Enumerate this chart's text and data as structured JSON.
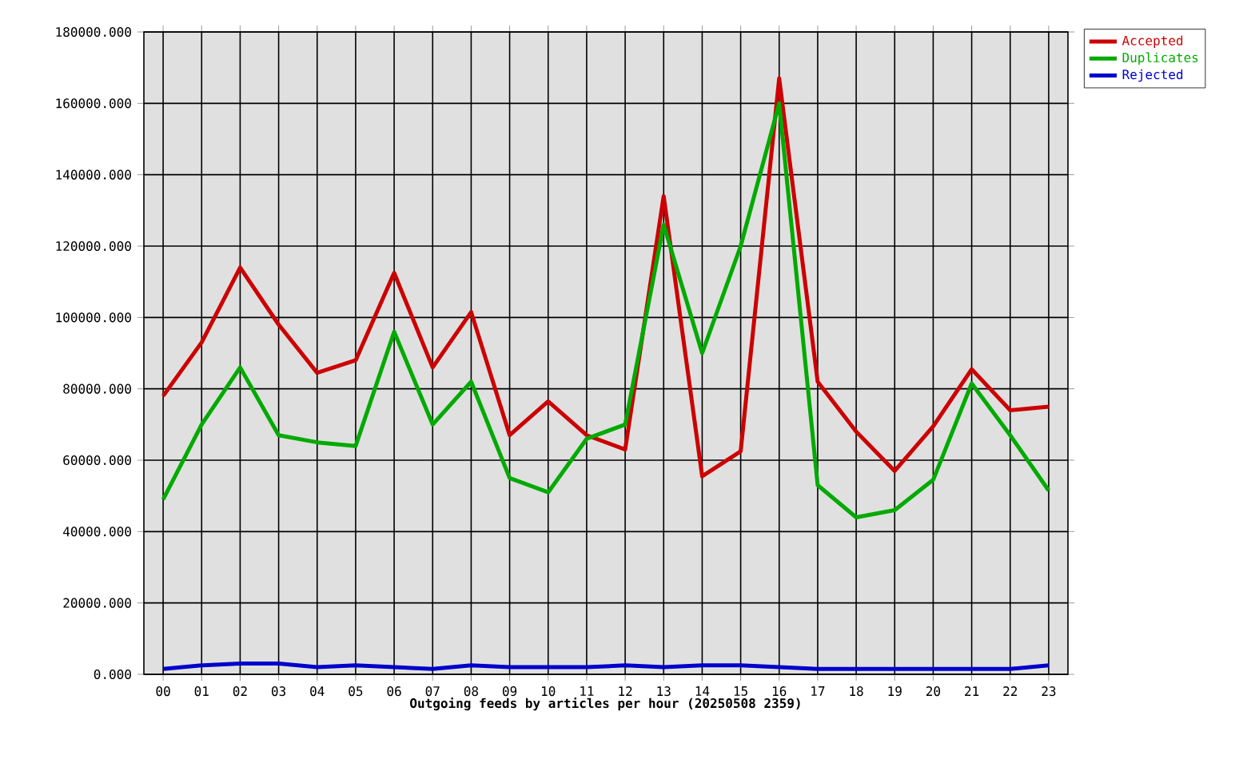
{
  "chart_data": {
    "type": "line",
    "xlabel": "Outgoing feeds by articles per hour (20250508 2359)",
    "categories": [
      "00",
      "01",
      "02",
      "03",
      "04",
      "05",
      "06",
      "07",
      "08",
      "09",
      "10",
      "11",
      "12",
      "13",
      "14",
      "15",
      "16",
      "17",
      "18",
      "19",
      "20",
      "21",
      "22",
      "23"
    ],
    "series": [
      {
        "name": "Accepted",
        "color": "#cc0000",
        "values": [
          78000,
          93000,
          114000,
          98000,
          84500,
          88000,
          112500,
          86000,
          101500,
          67000,
          76500,
          67000,
          63000,
          134000,
          55500,
          62500,
          167000,
          82000,
          68000,
          57000,
          69500,
          85500,
          74000,
          75000
        ]
      },
      {
        "name": "Duplicates",
        "color": "#00aa00",
        "values": [
          49000,
          70000,
          86000,
          67000,
          65000,
          64000,
          96000,
          70000,
          82000,
          55000,
          51000,
          66000,
          70000,
          126000,
          90000,
          120000,
          160000,
          53000,
          44000,
          46000,
          54500,
          81500,
          67000,
          51500
        ]
      },
      {
        "name": "Rejected",
        "color": "#0000cc",
        "values": [
          1500,
          2500,
          3000,
          3000,
          2000,
          2500,
          2000,
          1500,
          2500,
          2000,
          2000,
          2000,
          2500,
          2000,
          2500,
          2500,
          2000,
          1500,
          1500,
          1500,
          1500,
          1500,
          1500,
          2500
        ]
      }
    ],
    "ylim": [
      0,
      180000
    ],
    "yticks": [
      {
        "value": 0,
        "label": "0.000"
      },
      {
        "value": 20000,
        "label": "20000.000"
      },
      {
        "value": 40000,
        "label": "40000.000"
      },
      {
        "value": 60000,
        "label": "60000.000"
      },
      {
        "value": 80000,
        "label": "80000.000"
      },
      {
        "value": 100000,
        "label": "100000.000"
      },
      {
        "value": 120000,
        "label": "120000.000"
      },
      {
        "value": 140000,
        "label": "140000.000"
      },
      {
        "value": 160000,
        "label": "160000.000"
      },
      {
        "value": 180000,
        "label": "180000.000"
      }
    ],
    "grid": true,
    "legend": "top right",
    "marker": "none",
    "line_style": "solid"
  }
}
